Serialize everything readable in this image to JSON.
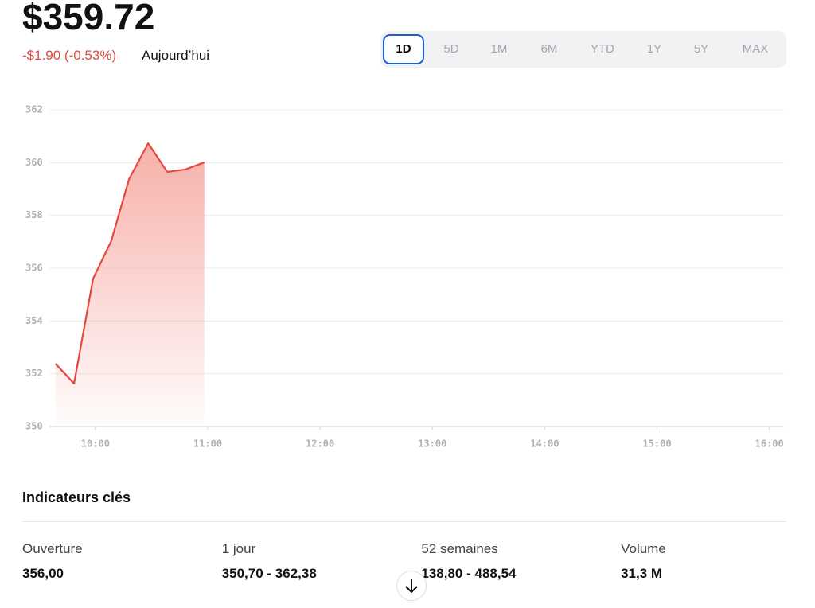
{
  "header": {
    "price": "$359.72",
    "change": "-$1.90 (-0.53%)",
    "period": "Aujourd’hui"
  },
  "range_tabs": {
    "labels": [
      "1D",
      "5D",
      "1M",
      "6M",
      "YTD",
      "1Y",
      "5Y",
      "MAX"
    ],
    "selected": 0
  },
  "chart_data": {
    "type": "area",
    "color": "#e5483f",
    "x": [
      9.645,
      9.81,
      9.98,
      10.14,
      10.3,
      10.47,
      10.64,
      10.8,
      10.97
    ],
    "values": [
      352.38,
      351.63,
      355.61,
      357.02,
      359.38,
      360.73,
      359.65,
      359.74,
      360.01
    ],
    "xlim": [
      9.59,
      16.13
    ],
    "xticks": [
      {
        "value": 10,
        "label": "10:00"
      },
      {
        "value": 11,
        "label": "11:00"
      },
      {
        "value": 12,
        "label": "12:00"
      },
      {
        "value": 13,
        "label": "13:00"
      },
      {
        "value": 14,
        "label": "14:00"
      },
      {
        "value": 15,
        "label": "15:00"
      },
      {
        "value": 16,
        "label": "16:00"
      }
    ],
    "ylim": [
      350,
      362
    ],
    "yticks": [
      350,
      352,
      354,
      356,
      358,
      360,
      362
    ],
    "grid": true
  },
  "key_stats": {
    "title": "Indicateurs clés",
    "items": [
      {
        "label": "Ouverture",
        "value": "356,00"
      },
      {
        "label": "1 jour",
        "value": "350,70 - 362,38"
      },
      {
        "label": "52 semaines",
        "value": "138,80 - 488,54"
      },
      {
        "label": "Volume",
        "value": "31,3 M"
      }
    ]
  }
}
